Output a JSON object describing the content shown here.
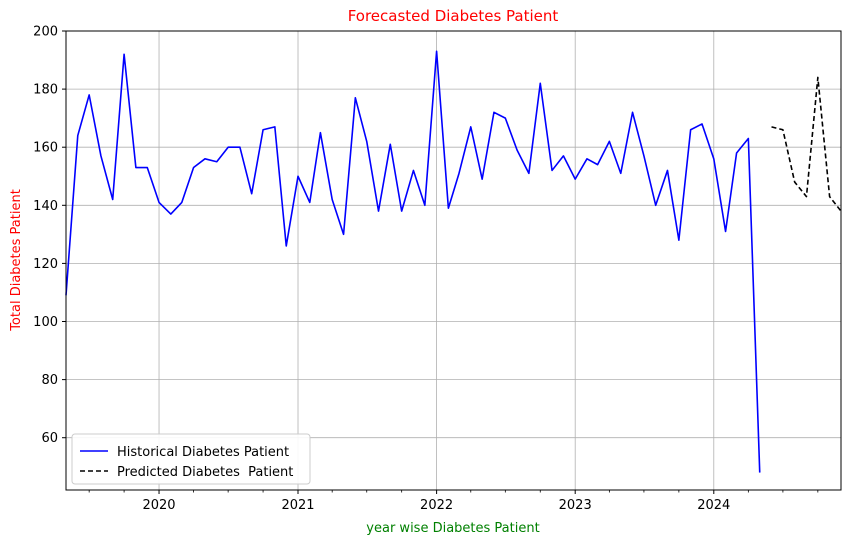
{
  "chart_data": {
    "type": "line",
    "title": "Forecasted Diabetes Patient",
    "xlabel": "year wise Diabetes Patient",
    "ylabel": "Total Diabetes Patient",
    "ylim": [
      42,
      200
    ],
    "xlim": [
      "2019-05-01",
      "2024-12-01"
    ],
    "grid": true,
    "legend_position": "lower-left",
    "x_ticks": [
      {
        "label": "2020",
        "date": "2020-01-01"
      },
      {
        "label": "2021",
        "date": "2021-01-01"
      },
      {
        "label": "2022",
        "date": "2022-01-01"
      },
      {
        "label": "2023",
        "date": "2023-01-01"
      },
      {
        "label": "2024",
        "date": "2024-01-01"
      }
    ],
    "y_ticks": [
      60,
      80,
      100,
      120,
      140,
      160,
      180,
      200
    ],
    "colors": {
      "title": "#ff0000",
      "ylabel": "#ff0000",
      "xlabel": "#008000",
      "historical": "#0000ff",
      "predicted": "#000000"
    },
    "series": [
      {
        "name": "Historical Diabetes Patient",
        "style": "solid",
        "x": [
          "2019-05-01",
          "2019-06-01",
          "2019-07-01",
          "2019-08-01",
          "2019-09-01",
          "2019-10-01",
          "2019-11-01",
          "2019-12-01",
          "2020-01-01",
          "2020-02-01",
          "2020-03-01",
          "2020-04-01",
          "2020-05-01",
          "2020-06-01",
          "2020-07-01",
          "2020-08-01",
          "2020-09-01",
          "2020-10-01",
          "2020-11-01",
          "2020-12-01",
          "2021-01-01",
          "2021-02-01",
          "2021-03-01",
          "2021-04-01",
          "2021-05-01",
          "2021-06-01",
          "2021-07-01",
          "2021-08-01",
          "2021-09-01",
          "2021-10-01",
          "2021-11-01",
          "2021-12-01",
          "2022-01-01",
          "2022-02-01",
          "2022-03-01",
          "2022-04-01",
          "2022-05-01",
          "2022-06-01",
          "2022-07-01",
          "2022-08-01",
          "2022-09-01",
          "2022-10-01",
          "2022-11-01",
          "2022-12-01",
          "2023-01-01",
          "2023-02-01",
          "2023-03-01",
          "2023-04-01",
          "2023-05-01",
          "2023-06-01",
          "2023-07-01",
          "2023-08-01",
          "2023-09-01",
          "2023-10-01",
          "2023-11-01",
          "2023-12-01",
          "2024-01-01",
          "2024-02-01",
          "2024-03-01",
          "2024-04-01",
          "2024-05-01"
        ],
        "values": [
          109,
          164,
          178,
          157,
          142,
          192,
          153,
          153,
          141,
          137,
          141,
          153,
          156,
          155,
          160,
          160,
          144,
          166,
          167,
          126,
          150,
          141,
          165,
          142,
          130,
          177,
          162,
          138,
          161,
          138,
          152,
          140,
          193,
          139,
          151,
          167,
          149,
          172,
          170,
          159,
          151,
          182,
          152,
          157,
          149,
          156,
          154,
          162,
          151,
          172,
          157,
          140,
          152,
          128,
          166,
          168,
          156,
          131,
          158,
          163,
          48
        ]
      },
      {
        "name": "Predicted Diabetes  Patient",
        "style": "dashed",
        "x": [
          "2024-06-01",
          "2024-07-01",
          "2024-08-01",
          "2024-09-01",
          "2024-10-01",
          "2024-11-01",
          "2024-12-01"
        ],
        "values": [
          167,
          166,
          148,
          143,
          184,
          143,
          138
        ]
      }
    ]
  }
}
